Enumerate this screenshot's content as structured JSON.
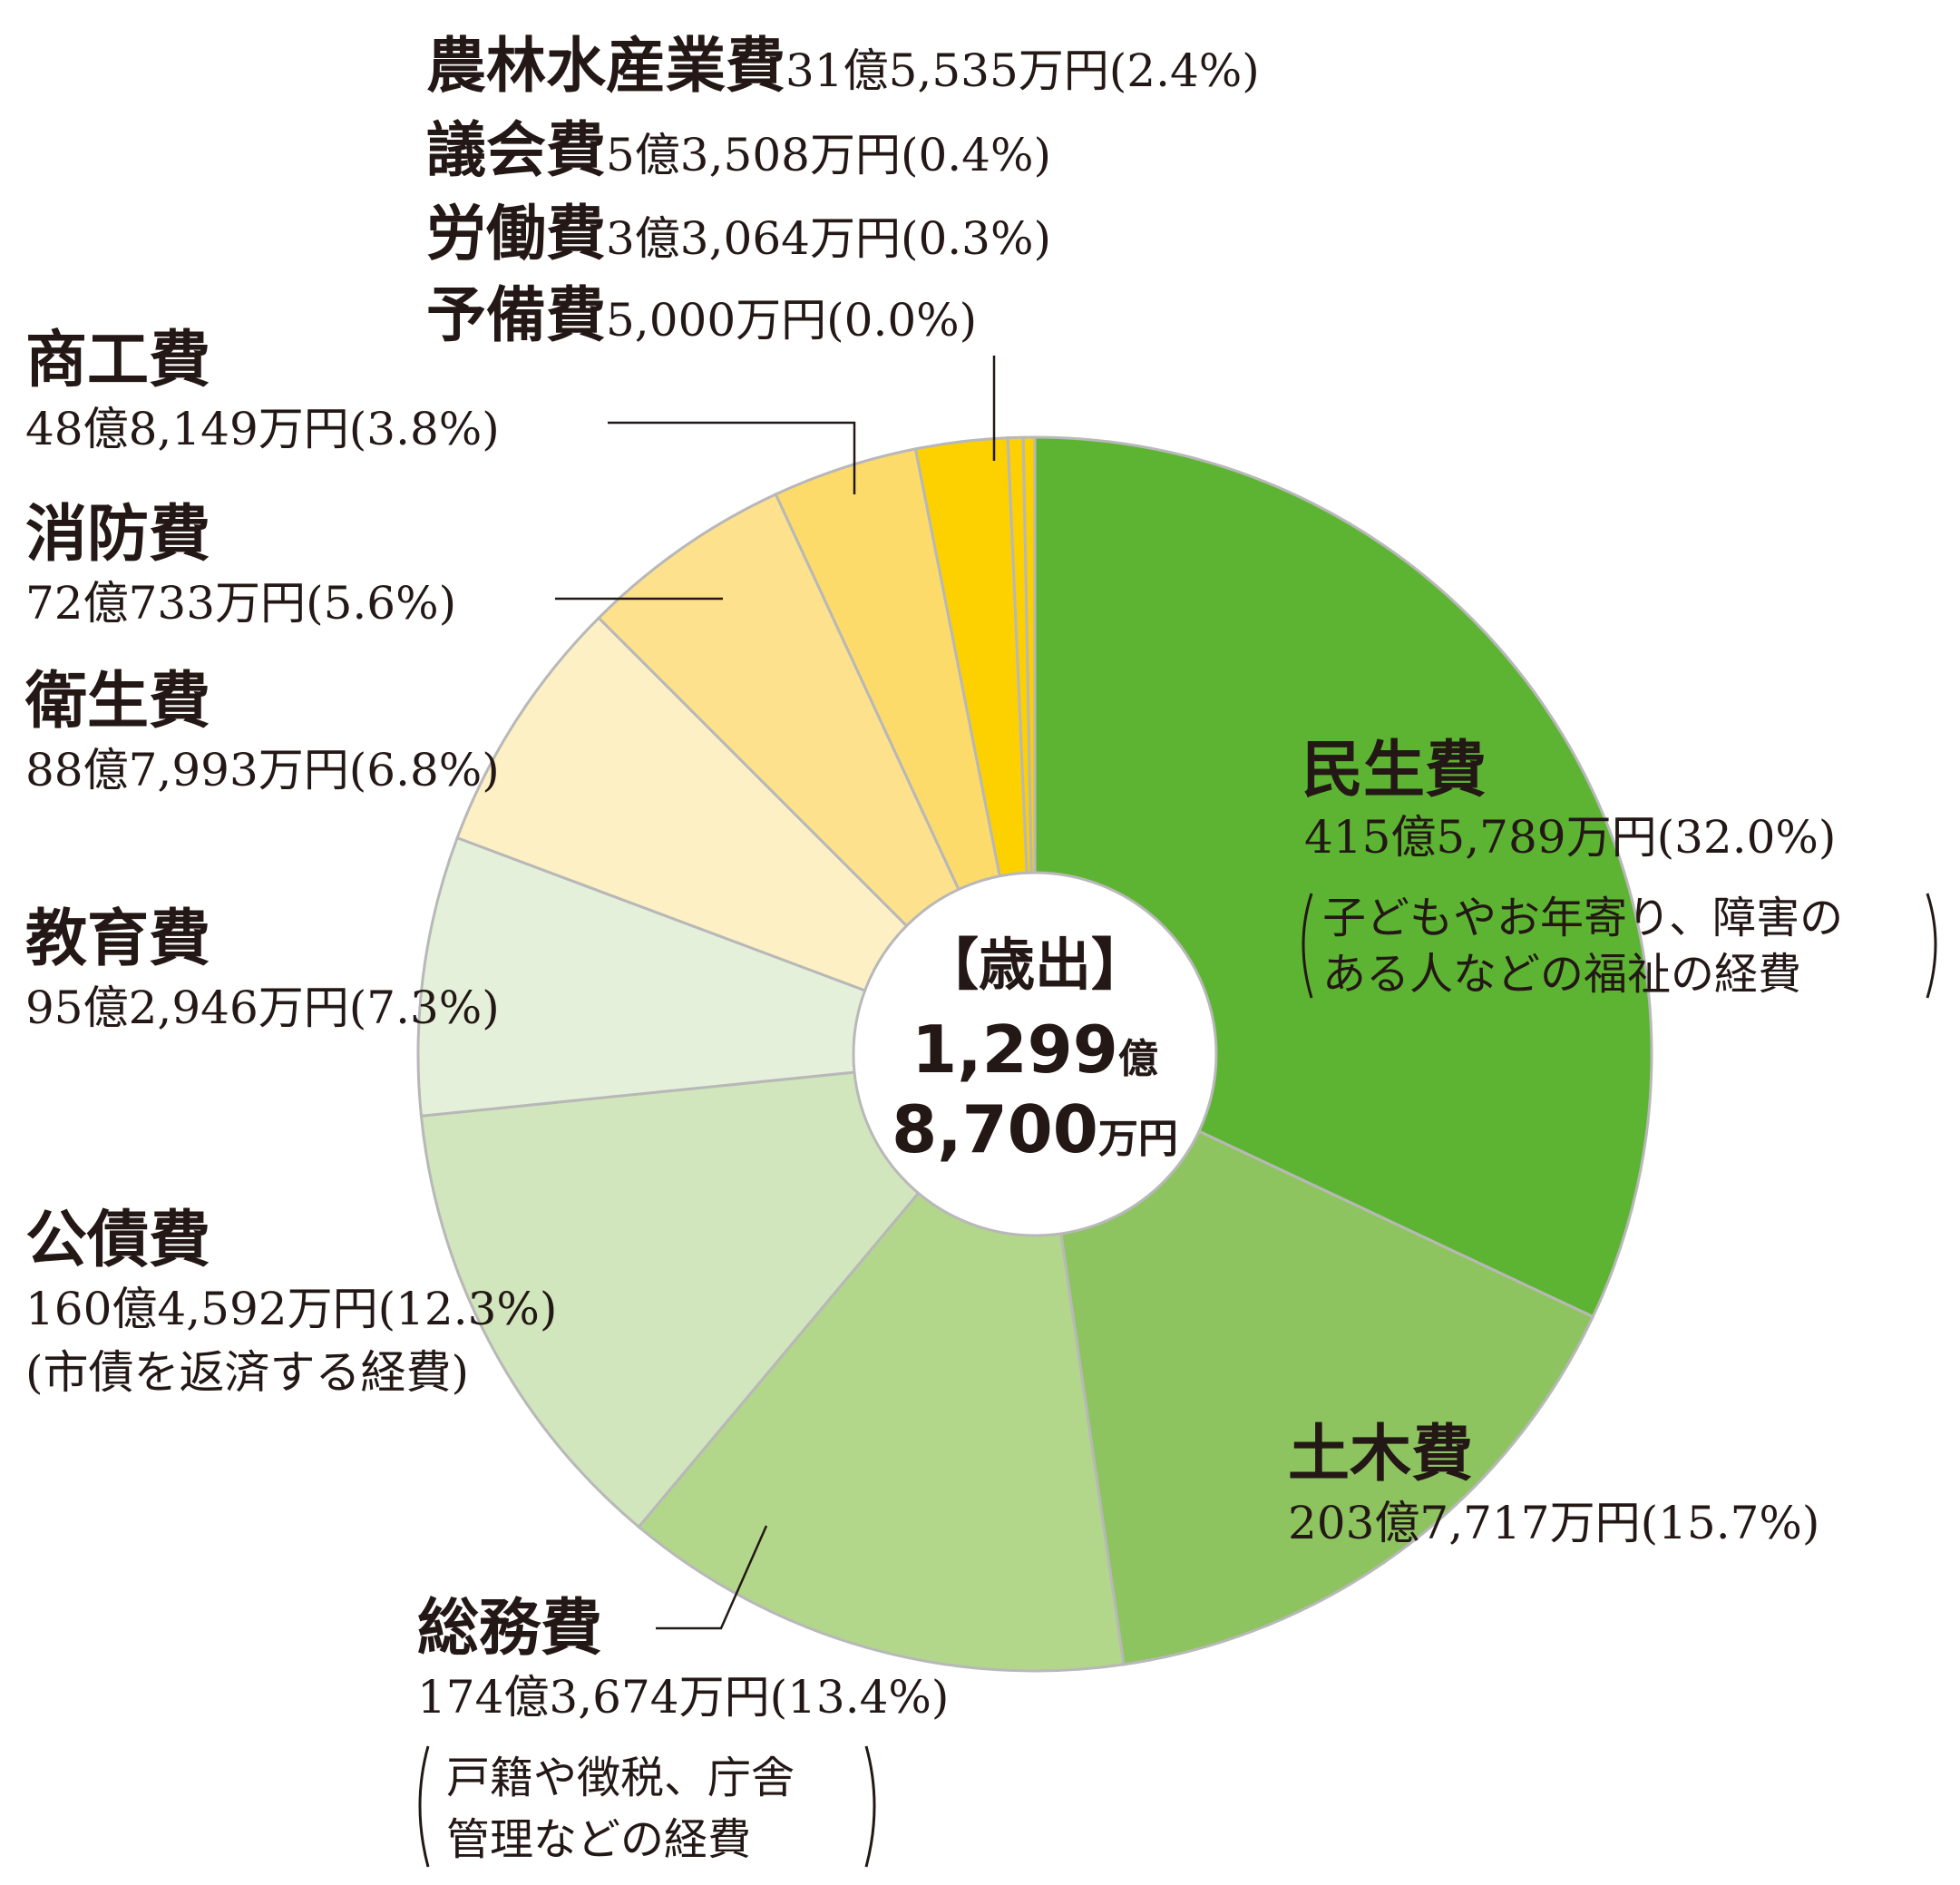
{
  "chart_data": {
    "type": "pie",
    "center_label": {
      "title": "【歳出】",
      "line1": "1,299",
      "unit1": "億",
      "line2": "8,700",
      "unit2": "万円"
    },
    "slices": [
      {
        "name": "民生費",
        "amount": "415億5,789万円",
        "percent": 32.0,
        "percent_label": "(32.0%)",
        "note": [
          "子どもやお年寄り、障害の",
          "ある人などの福祉の経費"
        ],
        "color": "#5db432"
      },
      {
        "name": "土木費",
        "amount": "203億7,717万円",
        "percent": 15.7,
        "percent_label": "(15.7%)",
        "color": "#8dc460"
      },
      {
        "name": "総務費",
        "amount": "174億3,674万円",
        "percent": 13.4,
        "percent_label": "(13.4%)",
        "note": [
          "戸籍や徴税、庁舎",
          "管理などの経費"
        ],
        "color": "#b2d78b"
      },
      {
        "name": "公債費",
        "amount": "160億4,592万円",
        "percent": 12.3,
        "percent_label": "(12.3%)",
        "note": [
          "(市債を返済する経費)"
        ],
        "color": "#d1e6bc"
      },
      {
        "name": "教育費",
        "amount": "95億2,946万円",
        "percent": 7.3,
        "percent_label": "(7.3%)",
        "color": "#e5f0da"
      },
      {
        "name": "衛生費",
        "amount": "88億7,993万円",
        "percent": 6.8,
        "percent_label": "(6.8%)",
        "color": "#fdf0c4"
      },
      {
        "name": "消防費",
        "amount": "72億733万円",
        "percent": 5.6,
        "percent_label": "(5.6%)",
        "color": "#fde18d"
      },
      {
        "name": "商工費",
        "amount": "48億8,149万円",
        "percent": 3.8,
        "percent_label": "(3.8%)",
        "color": "#fddb6a"
      },
      {
        "name": "農林水産業費",
        "amount": "31億5,535万円",
        "percent": 2.4,
        "percent_label": "(2.4%)",
        "color": "#fdd000"
      },
      {
        "name": "議会費",
        "amount": "5億3,508万円",
        "percent": 0.4,
        "percent_label": "(0.4%)",
        "color": "#fdd000"
      },
      {
        "name": "労働費",
        "amount": "3億3,064万円",
        "percent": 0.3,
        "percent_label": "(0.3%)",
        "color": "#fdd000"
      },
      {
        "name": "予備費",
        "amount": "5,000万円",
        "percent": 0.0,
        "percent_label": "(0.0%)",
        "color": "#fdd000"
      }
    ],
    "slice_border_color": "#b8b8b8"
  }
}
